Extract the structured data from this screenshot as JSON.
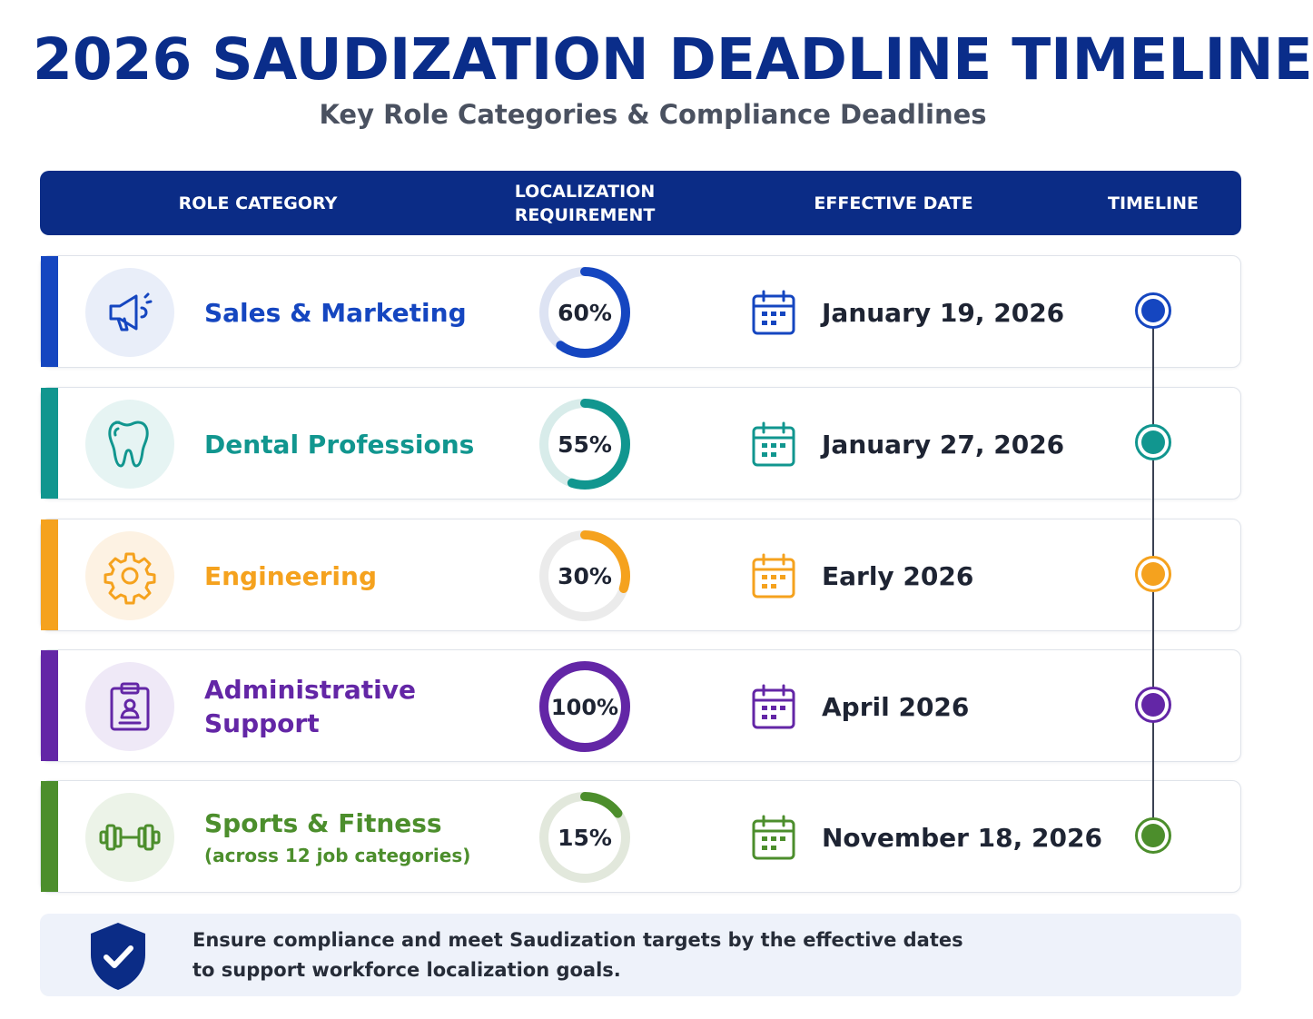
{
  "header": {
    "title": "2026 SAUDIZATION DEADLINE TIMELINE",
    "subtitle": "Key Role Categories & Compliance Deadlines"
  },
  "table": {
    "columns": {
      "role_category": "ROLE CATEGORY",
      "localization_line1": "LOCALIZATION",
      "localization_line2": "REQUIREMENT",
      "effective_date": "EFFECTIVE DATE",
      "timeline": "TIMELINE"
    },
    "rows": [
      {
        "category": "Sales & Marketing",
        "sub": "",
        "percent_label": "60%",
        "percent": 60,
        "date": "January 19, 2026",
        "icon": "megaphone-icon",
        "color": "#1546c0",
        "tint": "#e9eef9",
        "track": "#dde3f3"
      },
      {
        "category": "Dental Professions",
        "sub": "",
        "percent_label": "55%",
        "percent": 55,
        "date": "January 27, 2026",
        "icon": "tooth-icon",
        "color": "#11968f",
        "tint": "#e6f4f3",
        "track": "#d8ecea"
      },
      {
        "category": "Engineering",
        "sub": "",
        "percent_label": "30%",
        "percent": 30,
        "date": "Early 2026",
        "icon": "gear-icon",
        "color": "#f5a21e",
        "tint": "#fdf2e3",
        "track": "#ebebeb"
      },
      {
        "category": "Administrative Support",
        "sub": "",
        "percent_label": "100%",
        "percent": 100,
        "date": "April 2026",
        "icon": "clipboard-icon",
        "color": "#6326a6",
        "tint": "#efe9f7",
        "track": "#e9e1f3"
      },
      {
        "category": "Sports & Fitness",
        "sub": "(across 12 job categories)",
        "percent_label": "15%",
        "percent": 15,
        "date": "November 18, 2026",
        "icon": "dumbbell-icon",
        "color": "#4c8e2c",
        "tint": "#ecf3e8",
        "track": "#e2e8dc"
      }
    ]
  },
  "footer": {
    "line1": "Ensure compliance and meet Saudization targets by the effective dates",
    "line2": "to support workforce localization goals.",
    "icon": "shield-check-icon",
    "color": "#0b2c86"
  }
}
